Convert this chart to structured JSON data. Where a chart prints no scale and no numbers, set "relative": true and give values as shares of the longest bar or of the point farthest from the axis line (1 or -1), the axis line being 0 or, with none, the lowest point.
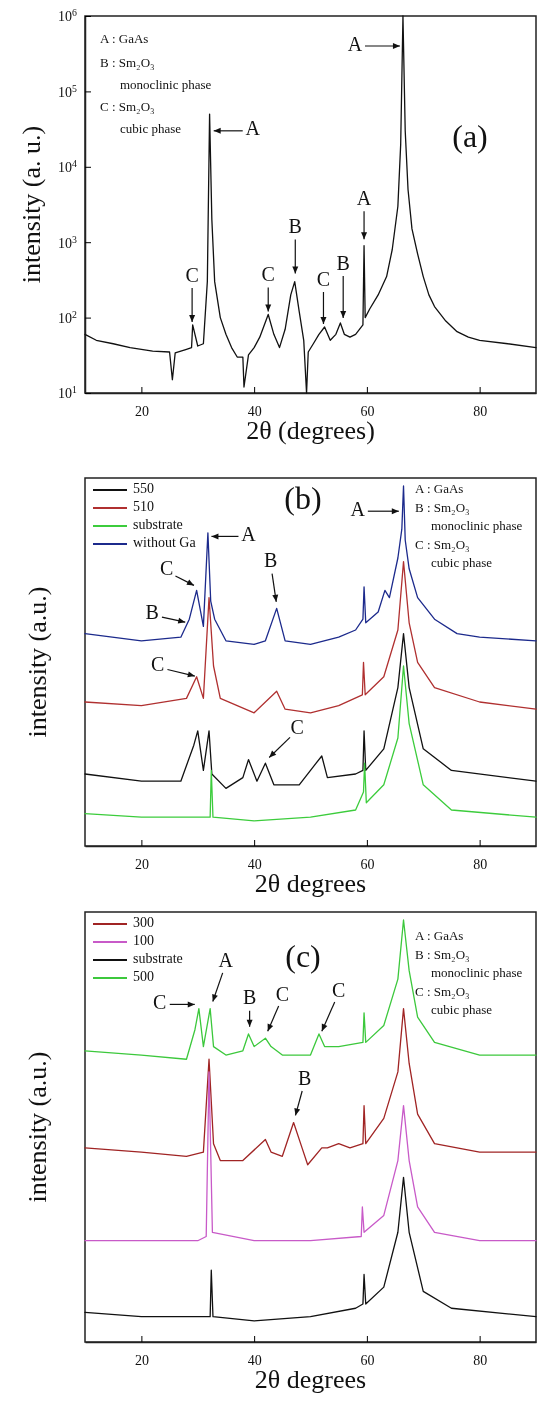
{
  "chart_data": [
    {
      "type": "line",
      "xlabel": "2θ (degrees)",
      "ylabel": "intensity (a. u.)",
      "log": "y",
      "xlim": [
        10,
        90
      ],
      "xticks": [
        20,
        40,
        60,
        80
      ],
      "ylim": [
        10,
        1000000
      ],
      "yticks": [
        {
          "value": 10,
          "label": "10$^{1}$"
        },
        {
          "value": 100,
          "label": "10$^{2}$"
        },
        {
          "value": 1000,
          "label": "10$^{3}$"
        },
        {
          "value": 10000,
          "label": "10$^{4}$"
        },
        {
          "value": 100000,
          "label": "10$^{5}$"
        },
        {
          "value": 1000000,
          "label": "10$^{6}$"
        }
      ],
      "series": [
        {
          "color": "#111111",
          "x": [
            10,
            12,
            15,
            18,
            20,
            22,
            25,
            25.5,
            26,
            28,
            28.9,
            29.1,
            30,
            31,
            31.7,
            32.1,
            32.5,
            33,
            34,
            35,
            36,
            37,
            38,
            38.2,
            39,
            40,
            41,
            42.5,
            43.5,
            44.5,
            45.5,
            46.5,
            47.2,
            48,
            48.8,
            49.3,
            49.6,
            50.5,
            51.5,
            52.5,
            53.5,
            54.5,
            55.3,
            56,
            57,
            58,
            59.3,
            59.5,
            59.7,
            60.5,
            62,
            63.5,
            64.5,
            65.5,
            66,
            66.4,
            66.8,
            67.3,
            68,
            69,
            70,
            71,
            72,
            74,
            76,
            78,
            80,
            85,
            90
          ],
          "values": [
            60,
            50,
            45,
            40,
            38,
            36,
            35,
            15,
            34,
            38,
            40,
            80,
            42,
            45,
            300,
            50000,
            2000,
            300,
            100,
            60,
            40,
            30,
            30,
            12,
            32,
            40,
            55,
            110,
            60,
            40,
            70,
            200,
            300,
            120,
            50,
            10,
            35,
            45,
            60,
            75,
            50,
            60,
            85,
            60,
            55,
            60,
            80,
            900,
            100,
            130,
            200,
            350,
            800,
            3000,
            20000,
            1000000,
            30000,
            5000,
            1500,
            700,
            350,
            200,
            140,
            90,
            65,
            55,
            50,
            45,
            40
          ]
        }
      ],
      "annotations": [
        "A : GaAs",
        "B : Sm₂O₃",
        "monoclinic phase",
        "C : Sm₂O₃",
        "cubic phase",
        "(a)",
        {
          "text": "A",
          "x": 32.3,
          "y": 30000
        },
        {
          "text": "A",
          "x": 66.4,
          "y": 400000
        },
        {
          "text": "A",
          "x": 59.5,
          "y": 1000
        },
        {
          "text": "C",
          "x": 29,
          "y": 80
        },
        {
          "text": "C",
          "x": 42.5,
          "y": 110
        },
        {
          "text": "B",
          "x": 47.3,
          "y": 350
        },
        {
          "text": "C",
          "x": 52.3,
          "y": 75
        },
        {
          "text": "B",
          "x": 55.8,
          "y": 90
        }
      ]
    },
    {
      "type": "line",
      "xlabel": "2θ degrees",
      "ylabel": "intensity (a.u.)",
      "relative": true,
      "xlim": [
        10,
        90
      ],
      "xticks": [
        20,
        40,
        60,
        80
      ],
      "legend": "top left",
      "series": [
        {
          "name": "550",
          "color": "#111111",
          "x": [
            10,
            20,
            27,
            29.3,
            30,
            31,
            32,
            32.5,
            35,
            38,
            39,
            40.5,
            42,
            43.5,
            48,
            51,
            52,
            53,
            58,
            59.3,
            59.5,
            59.8,
            63,
            65.5,
            66.5,
            67.5,
            70,
            75,
            90
          ],
          "values": [
            0.2,
            0.18,
            0.18,
            0.28,
            0.32,
            0.21,
            0.32,
            0.2,
            0.16,
            0.19,
            0.24,
            0.18,
            0.23,
            0.17,
            0.17,
            0.23,
            0.25,
            0.19,
            0.2,
            0.21,
            0.32,
            0.21,
            0.27,
            0.44,
            0.59,
            0.44,
            0.27,
            0.21,
            0.18
          ]
        },
        {
          "name": "510",
          "color": "#b03030",
          "x": [
            10,
            20,
            28,
            29.8,
            31,
            32,
            32.8,
            34,
            40,
            44,
            45.5,
            50,
            55,
            59.2,
            59.4,
            59.7,
            63,
            65.5,
            66.5,
            67.5,
            69,
            72,
            80,
            90
          ],
          "values": [
            0.4,
            0.39,
            0.41,
            0.47,
            0.41,
            0.69,
            0.5,
            0.41,
            0.37,
            0.43,
            0.38,
            0.37,
            0.39,
            0.42,
            0.51,
            0.42,
            0.47,
            0.6,
            0.79,
            0.62,
            0.51,
            0.44,
            0.4,
            0.38
          ]
        },
        {
          "name": "substrate",
          "color": "#3ccc3c",
          "x": [
            10,
            20,
            30,
            32.2,
            32.4,
            32.7,
            40,
            50,
            58,
            59.4,
            59.6,
            59.9,
            63,
            65.5,
            66.5,
            67.5,
            70,
            75,
            90
          ],
          "values": [
            0.09,
            0.08,
            0.08,
            0.08,
            0.21,
            0.08,
            0.07,
            0.08,
            0.1,
            0.15,
            0.23,
            0.12,
            0.17,
            0.3,
            0.5,
            0.34,
            0.17,
            0.1,
            0.08
          ]
        },
        {
          "name": "without Ga",
          "color": "#1c2a8c",
          "x": [
            10,
            20,
            27,
            28.5,
            29.8,
            31,
            31.8,
            32.3,
            33,
            35,
            40,
            42,
            44,
            45.5,
            50,
            55,
            58,
            59.3,
            59.5,
            59.8,
            62,
            63.2,
            64,
            65.5,
            66.2,
            66.5,
            66.8,
            67.5,
            69,
            72,
            76,
            80,
            90
          ],
          "values": [
            0.59,
            0.57,
            0.58,
            0.63,
            0.71,
            0.61,
            0.87,
            0.68,
            0.63,
            0.57,
            0.56,
            0.57,
            0.66,
            0.57,
            0.56,
            0.58,
            0.6,
            0.63,
            0.72,
            0.62,
            0.65,
            0.71,
            0.69,
            0.8,
            0.88,
            1.0,
            0.85,
            0.77,
            0.69,
            0.63,
            0.59,
            0.58,
            0.57
          ]
        }
      ],
      "annotations": [
        "A : GaAs",
        "B : Sm₂O₃",
        "monoclinic phase",
        "C : Sm₂O₃",
        "cubic phase",
        "(b)",
        {
          "text": "C",
          "x": 29.8,
          "y": 0.72
        },
        {
          "text": "B",
          "x": 28.3,
          "y": 0.62
        },
        {
          "text": "A",
          "x": 31.9,
          "y": 0.86
        },
        {
          "text": "B",
          "x": 44,
          "y": 0.67
        },
        {
          "text": "C",
          "x": 30,
          "y": 0.47
        },
        {
          "text": "A",
          "x": 66.2,
          "y": 0.93
        },
        {
          "text": "C",
          "x": 42.3,
          "y": 0.24
        }
      ]
    },
    {
      "type": "line",
      "xlabel": "2θ degrees",
      "ylabel": "intensity (a.u.)",
      "relative": true,
      "xlim": [
        10,
        90
      ],
      "xticks": [
        20,
        40,
        60,
        80
      ],
      "legend": "top left",
      "series": [
        {
          "name": "300",
          "color": "#a02424",
          "x": [
            10,
            20,
            28,
            31,
            32,
            32.8,
            34,
            38,
            42,
            43,
            45,
            47,
            48.5,
            49.5,
            52,
            53,
            55,
            57,
            59.3,
            59.5,
            59.8,
            63,
            65.5,
            66.5,
            67.5,
            69,
            72,
            80,
            90
          ],
          "values": [
            0.46,
            0.45,
            0.44,
            0.45,
            0.67,
            0.47,
            0.43,
            0.43,
            0.48,
            0.45,
            0.44,
            0.52,
            0.46,
            0.42,
            0.46,
            0.46,
            0.47,
            0.46,
            0.47,
            0.56,
            0.47,
            0.53,
            0.64,
            0.79,
            0.66,
            0.54,
            0.47,
            0.45,
            0.45
          ]
        },
        {
          "name": "100",
          "color": "#c85ac8",
          "x": [
            10,
            20,
            30,
            31.5,
            32,
            32.6,
            40,
            50,
            59,
            59.2,
            59.5,
            63,
            65.5,
            66.5,
            67.5,
            69,
            72,
            80,
            90
          ],
          "values": [
            0.24,
            0.24,
            0.24,
            0.25,
            0.64,
            0.26,
            0.24,
            0.24,
            0.25,
            0.32,
            0.26,
            0.3,
            0.43,
            0.56,
            0.43,
            0.32,
            0.26,
            0.24,
            0.24
          ]
        },
        {
          "name": "substrate",
          "color": "#111111",
          "x": [
            10,
            20,
            30,
            32.2,
            32.4,
            32.7,
            40,
            50,
            58,
            59.3,
            59.5,
            59.8,
            63,
            65.5,
            66.5,
            67.5,
            70,
            75,
            90
          ],
          "values": [
            0.07,
            0.06,
            0.06,
            0.06,
            0.17,
            0.06,
            0.05,
            0.06,
            0.08,
            0.09,
            0.16,
            0.09,
            0.13,
            0.26,
            0.39,
            0.26,
            0.12,
            0.08,
            0.06
          ]
        },
        {
          "name": "500",
          "color": "#3cc83c",
          "x": [
            10,
            20,
            28,
            29.5,
            30.2,
            31,
            32.2,
            32.8,
            35,
            38,
            39,
            40,
            42,
            43,
            45,
            50,
            51.5,
            52.5,
            55,
            59.3,
            59.5,
            59.8,
            63,
            65.5,
            66.5,
            67.5,
            69,
            72,
            80,
            90
          ],
          "values": [
            0.69,
            0.68,
            0.67,
            0.74,
            0.79,
            0.7,
            0.79,
            0.7,
            0.68,
            0.69,
            0.73,
            0.7,
            0.72,
            0.7,
            0.68,
            0.68,
            0.73,
            0.7,
            0.7,
            0.71,
            0.78,
            0.71,
            0.75,
            0.86,
            1.0,
            0.88,
            0.77,
            0.71,
            0.68,
            0.68
          ]
        }
      ],
      "annotations": [
        "A : GaAs",
        "B : Sm₂O₃",
        "monoclinic phase",
        "C : Sm₂O₃",
        "cubic phase",
        "(c)",
        {
          "text": "A",
          "x": 32.5,
          "y": 0.8
        },
        {
          "text": "C",
          "x": 30,
          "y": 0.8
        },
        {
          "text": "B",
          "x": 39.2,
          "y": 0.74
        },
        {
          "text": "C",
          "x": 42.2,
          "y": 0.73
        },
        {
          "text": "C",
          "x": 51.8,
          "y": 0.73
        },
        {
          "text": "B",
          "x": 47.2,
          "y": 0.53
        }
      ]
    }
  ]
}
